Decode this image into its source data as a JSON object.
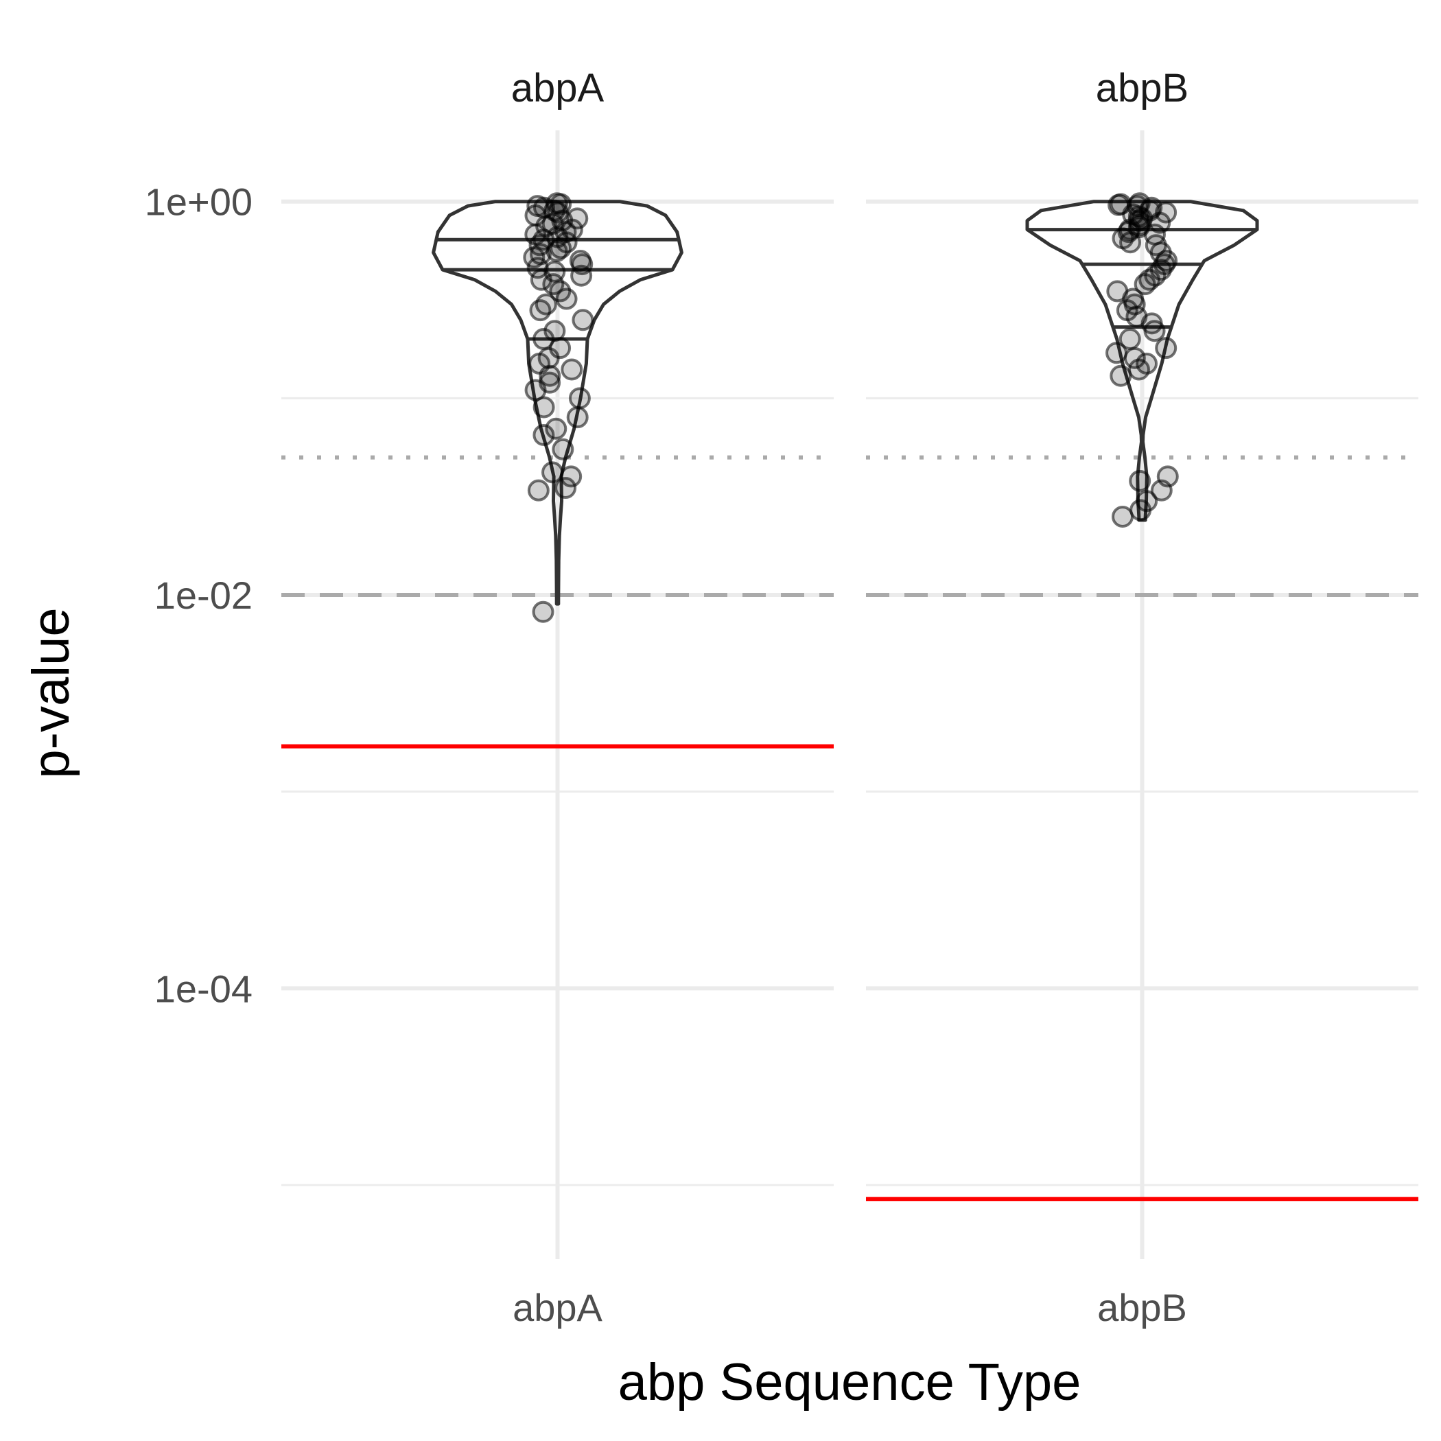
{
  "chart_data": {
    "type": "violin",
    "xlabel": "abp Sequence Type",
    "ylabel": "p-value",
    "y_scale": "log10",
    "ylim": [
      4.2e-06,
      2.3
    ],
    "y_ticks": [
      {
        "value": 1,
        "label": "1e+00"
      },
      {
        "value": 0.01,
        "label": "1e-02"
      },
      {
        "value": 0.0001,
        "label": "1e-04"
      }
    ],
    "y_minor_gridlines": [
      0.1,
      0.001,
      1e-05
    ],
    "reference_lines": [
      {
        "value": 0.05,
        "style": "dotted",
        "color": "#aaaaaa"
      },
      {
        "value": 0.01,
        "style": "dashed",
        "color": "#aaaaaa"
      }
    ],
    "grid": true,
    "facets": [
      {
        "strip_label": "abpA",
        "x_tick_label": "abpA",
        "threshold_line": {
          "value": 0.0017,
          "color": "#ff0000"
        },
        "quantiles": [
          0.64,
          0.45,
          0.2
        ],
        "violin": [
          [
            1.0,
            0.27
          ],
          [
            0.95,
            0.39
          ],
          [
            0.85,
            0.47
          ],
          [
            0.7,
            0.52
          ],
          [
            0.55,
            0.54
          ],
          [
            0.45,
            0.5
          ],
          [
            0.4,
            0.36
          ],
          [
            0.35,
            0.27
          ],
          [
            0.3,
            0.2
          ],
          [
            0.25,
            0.16
          ],
          [
            0.2,
            0.13
          ],
          [
            0.15,
            0.125
          ],
          [
            0.1,
            0.1
          ],
          [
            0.07,
            0.072
          ],
          [
            0.05,
            0.035
          ],
          [
            0.04,
            0.016
          ],
          [
            0.03,
            0.018
          ],
          [
            0.025,
            0.013
          ],
          [
            0.02,
            0.008
          ],
          [
            0.015,
            0.005
          ],
          [
            0.01,
            0.004
          ],
          [
            0.009,
            0.004
          ]
        ],
        "points": [
          0.98,
          0.97,
          0.95,
          0.93,
          0.9,
          0.88,
          0.85,
          0.82,
          0.8,
          0.77,
          0.75,
          0.72,
          0.7,
          0.68,
          0.66,
          0.64,
          0.62,
          0.6,
          0.58,
          0.56,
          0.54,
          0.52,
          0.5,
          0.48,
          0.46,
          0.44,
          0.42,
          0.4,
          0.38,
          0.35,
          0.32,
          0.3,
          0.28,
          0.25,
          0.22,
          0.2,
          0.18,
          0.16,
          0.15,
          0.14,
          0.13,
          0.12,
          0.11,
          0.1,
          0.09,
          0.08,
          0.07,
          0.065,
          0.055,
          0.042,
          0.04,
          0.035,
          0.034,
          0.0082
        ]
      },
      {
        "strip_label": "abpB",
        "x_tick_label": "abpB",
        "threshold_line": {
          "value": 8.5e-06,
          "color": "#ff0000"
        },
        "quantiles": [
          0.72,
          0.48,
          0.23
        ],
        "violin": [
          [
            1.0,
            0.21
          ],
          [
            0.9,
            0.44
          ],
          [
            0.8,
            0.5
          ],
          [
            0.72,
            0.5
          ],
          [
            0.6,
            0.4
          ],
          [
            0.5,
            0.27
          ],
          [
            0.4,
            0.22
          ],
          [
            0.3,
            0.16
          ],
          [
            0.2,
            0.11
          ],
          [
            0.15,
            0.085
          ],
          [
            0.1,
            0.04
          ],
          [
            0.08,
            0.015
          ],
          [
            0.065,
            0.004
          ],
          [
            0.06,
            0.003
          ],
          [
            0.05,
            0.012
          ],
          [
            0.04,
            0.02
          ],
          [
            0.03,
            0.018
          ],
          [
            0.025,
            0.014
          ],
          [
            0.024,
            0.014
          ]
        ],
        "points": [
          0.98,
          0.97,
          0.96,
          0.95,
          0.93,
          0.9,
          0.88,
          0.86,
          0.84,
          0.82,
          0.8,
          0.78,
          0.76,
          0.74,
          0.72,
          0.7,
          0.68,
          0.65,
          0.62,
          0.6,
          0.55,
          0.5,
          0.48,
          0.45,
          0.42,
          0.4,
          0.38,
          0.35,
          0.32,
          0.3,
          0.28,
          0.26,
          0.24,
          0.22,
          0.2,
          0.18,
          0.17,
          0.16,
          0.15,
          0.14,
          0.13,
          0.04,
          0.038,
          0.034,
          0.03,
          0.027,
          0.025
        ]
      }
    ]
  }
}
